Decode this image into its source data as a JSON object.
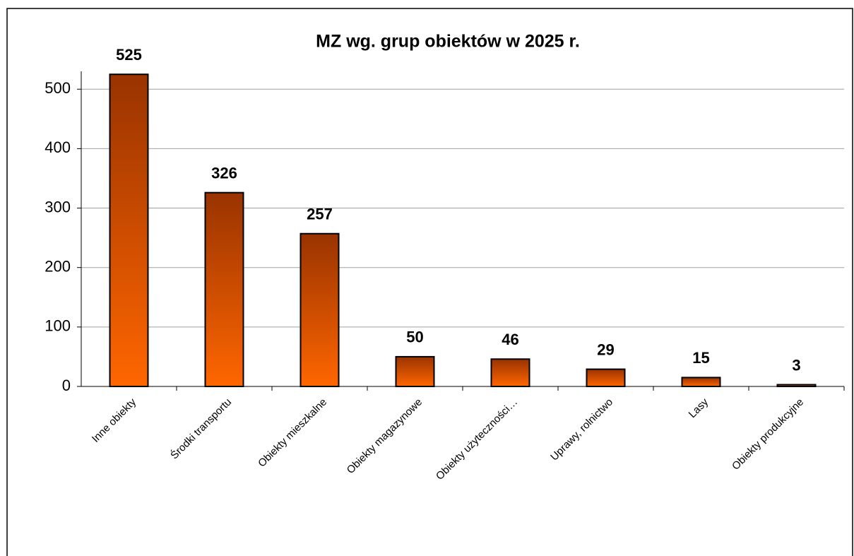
{
  "chart_data": {
    "type": "bar",
    "title": "MZ wg. grup obiektów w 2025 r.",
    "categories": [
      "Inne obiekty",
      "Środki transportu",
      "Obiekty mieszkalne",
      "Obiekty magazynowe",
      "Obiekty użyteczności…",
      "Uprawy, rolnictwo",
      "Lasy",
      "Obiekty produkcyjne"
    ],
    "values": [
      525,
      326,
      257,
      50,
      46,
      29,
      15,
      3
    ],
    "gradient": [
      "#993300",
      "#ff6600"
    ],
    "ylim": [
      0,
      530
    ],
    "yticks": [
      0,
      100,
      200,
      300,
      400,
      500
    ],
    "grid": true
  }
}
